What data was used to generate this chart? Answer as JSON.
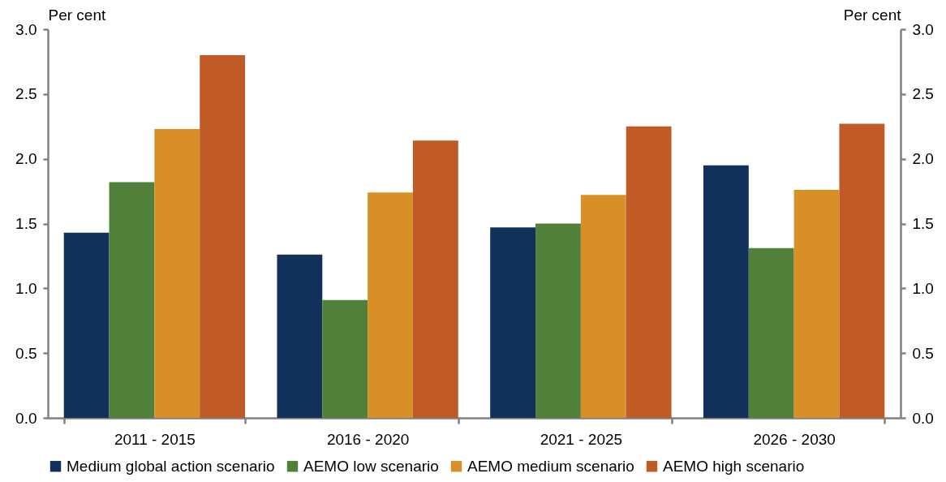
{
  "chart_data": {
    "type": "bar",
    "ylabel": "Per cent",
    "y2label": "Per cent",
    "categories": [
      "2011 - 2015",
      "2016 - 2020",
      "2021 - 2025",
      "2026 - 2030"
    ],
    "series": [
      {
        "name": "Medium global action scenario",
        "color": "#11305a",
        "values": [
          1.43,
          1.26,
          1.47,
          1.95
        ]
      },
      {
        "name": "AEMO low scenario",
        "color": "#51803a",
        "values": [
          1.82,
          0.91,
          1.5,
          1.31
        ]
      },
      {
        "name": "AEMO medium scenario",
        "color": "#d98f27",
        "values": [
          2.23,
          1.74,
          1.72,
          1.76
        ]
      },
      {
        "name": "AEMO high scenario",
        "color": "#c05a27",
        "values": [
          2.8,
          2.14,
          2.25,
          2.27
        ]
      }
    ],
    "ylim": [
      0,
      3
    ],
    "yticks": [
      {
        "value": 0,
        "label": "0.0"
      },
      0.5,
      {
        "value": 1,
        "label": "1.0"
      },
      1.5,
      {
        "value": 2,
        "label": "2.0"
      },
      2.5,
      {
        "value": 3,
        "label": "3.0"
      }
    ],
    "y2lim": [
      0,
      3
    ],
    "y2ticks": [
      {
        "value": 0,
        "label": "0.0"
      },
      0.5,
      {
        "value": 1,
        "label": "1.0"
      },
      1.5,
      {
        "value": 2,
        "label": "2.0"
      },
      2.5,
      {
        "value": 3,
        "label": "3.0"
      }
    ],
    "grid": false,
    "legend": "bottom"
  }
}
